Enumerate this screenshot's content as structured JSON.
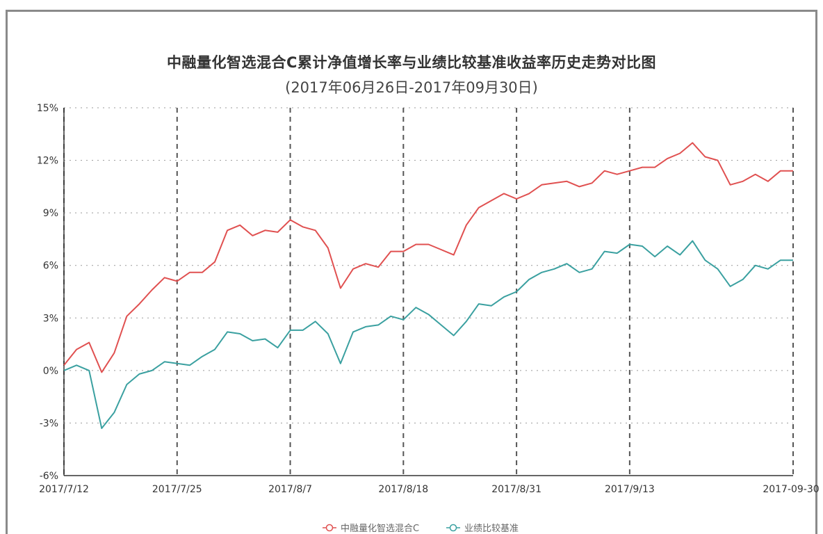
{
  "chart_data": {
    "type": "line",
    "title": "中融量化智选混合C累计净值增长率与业绩比较基准收益率历史走势对比图",
    "subtitle": "(2017年06月26日-2017年09月30日)",
    "ylim": [
      -6,
      15
    ],
    "y_ticks": [
      "-6%",
      "-3%",
      "0%",
      "3%",
      "6%",
      "9%",
      "12%",
      "15%"
    ],
    "y_tick_values": [
      -6,
      -3,
      0,
      3,
      6,
      9,
      12,
      15
    ],
    "x_tick_labels": [
      "2017/7/12",
      "2017/7/25",
      "2017/8/7",
      "2017/8/18",
      "2017/8/31",
      "2017/9/13",
      "2017-09-30"
    ],
    "x_tick_index": [
      0,
      9,
      18,
      27,
      36,
      45,
      58
    ],
    "grid": true,
    "legend_position": "bottom-center",
    "series": [
      {
        "name": "中融量化智选混合C",
        "color": "#e05050",
        "values": [
          0.3,
          1.2,
          1.6,
          -0.1,
          1.0,
          3.1,
          3.8,
          4.6,
          5.3,
          5.1,
          5.6,
          5.6,
          6.2,
          8.0,
          8.3,
          7.7,
          8.0,
          7.9,
          8.6,
          8.2,
          8.0,
          7.0,
          4.7,
          5.8,
          6.1,
          5.9,
          6.8,
          6.8,
          7.2,
          7.2,
          6.9,
          6.6,
          8.3,
          9.3,
          9.7,
          10.1,
          9.8,
          10.1,
          10.6,
          10.7,
          10.8,
          10.5,
          10.7,
          11.4,
          11.2,
          11.4,
          11.6,
          11.6,
          12.1,
          12.4,
          13.0,
          12.2,
          12.0,
          10.6,
          10.8,
          11.2,
          10.8,
          11.4,
          11.4
        ]
      },
      {
        "name": "业绩比较基准",
        "color": "#3aa0a0",
        "values": [
          0.0,
          0.3,
          0.0,
          -3.3,
          -2.4,
          -0.8,
          -0.2,
          0.0,
          0.5,
          0.4,
          0.3,
          0.8,
          1.2,
          2.2,
          2.1,
          1.7,
          1.8,
          1.3,
          2.3,
          2.3,
          2.8,
          2.1,
          0.4,
          2.2,
          2.5,
          2.6,
          3.1,
          2.9,
          3.6,
          3.2,
          2.6,
          2.0,
          2.8,
          3.8,
          3.7,
          4.2,
          4.5,
          5.2,
          5.6,
          5.8,
          6.1,
          5.6,
          5.8,
          6.8,
          6.7,
          7.2,
          7.1,
          6.5,
          7.1,
          6.6,
          7.4,
          6.3,
          5.8,
          4.8,
          5.2,
          6.0,
          5.8,
          6.3,
          6.3
        ]
      }
    ]
  }
}
